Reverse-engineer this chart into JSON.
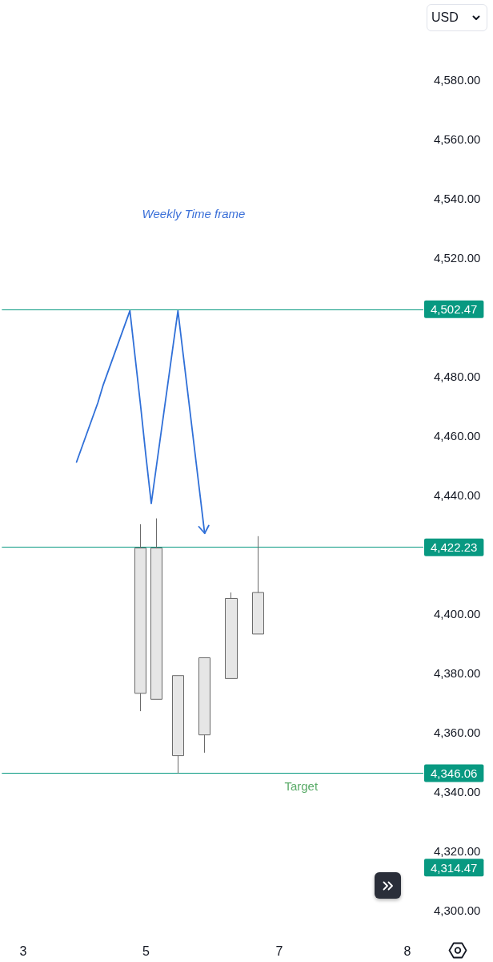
{
  "chart_data": {
    "type": "candlestick",
    "categories": [
      null,
      null,
      null,
      null,
      "3",
      null,
      null,
      null,
      null,
      null,
      null,
      null,
      null,
      null,
      null,
      null,
      null,
      null,
      null,
      null,
      null,
      null,
      null,
      null,
      null,
      null,
      null,
      "5",
      null,
      null,
      null,
      null,
      null,
      null,
      null,
      null,
      null,
      null,
      null,
      null,
      null,
      null,
      null,
      null,
      null,
      null,
      null,
      null,
      null,
      null,
      null,
      null,
      "7",
      null,
      null,
      null,
      null,
      null,
      null,
      null,
      null,
      null,
      null,
      null,
      null,
      null,
      null,
      null,
      null,
      null,
      null,
      null,
      null,
      null,
      null,
      null,
      "8",
      null,
      null,
      null
    ],
    "ohlc": [
      null,
      null,
      null,
      null,
      null,
      null,
      null,
      null,
      null,
      null,
      null,
      null,
      null,
      null,
      null,
      null,
      null,
      null,
      null,
      null,
      null,
      null,
      null,
      null,
      null,
      null,
      [
        4422,
        4430,
        4367,
        4373
      ],
      null,
      null,
      [
        4422,
        4432,
        4371,
        4371
      ],
      null,
      null,
      null,
      [
        4379,
        4379,
        4346,
        4352
      ],
      null,
      null,
      null,
      null,
      [
        4385,
        4385,
        4353,
        4359
      ],
      null,
      null,
      null,
      null,
      [
        4405,
        4407,
        4378,
        4378
      ],
      null,
      null,
      null,
      null,
      [
        4407,
        4426,
        4393,
        4393
      ],
      null,
      null,
      null,
      null,
      null,
      null,
      null,
      null,
      null,
      null,
      null,
      null,
      null,
      null,
      null,
      null,
      null,
      null,
      null,
      null,
      null,
      null,
      null,
      null,
      null,
      null,
      null,
      null,
      null,
      null,
      null
    ],
    "color": "#e6e6e6",
    "series": [
      {
        "type": "line",
        "color": "#3070d8",
        "values": [
          null,
          null,
          null,
          null,
          null,
          null,
          null,
          null,
          null,
          null,
          null,
          null,
          null,
          null,
          4451,
          4456,
          4461,
          4466,
          4471,
          4477,
          4482,
          4487,
          4492,
          4497,
          4502,
          4486,
          4470,
          4453,
          4437,
          4450,
          4463,
          4476,
          4489,
          4502,
          4487,
          4472,
          4457,
          4442,
          4427,
          null,
          null,
          null,
          null,
          null,
          null,
          null,
          null,
          null,
          null,
          null,
          null,
          null,
          null,
          null,
          null,
          null,
          null,
          null,
          null,
          null,
          null,
          null,
          null,
          null,
          null,
          null,
          null,
          null,
          null,
          null,
          null,
          null,
          null,
          null,
          null,
          null,
          null,
          null,
          null,
          null
        ]
      }
    ],
    "marker": "none",
    "ylabel": "USD",
    "ylim": [
      4300,
      4580
    ],
    "yticks": [
      {
        "value": 4300,
        "label": "4,300.00"
      },
      {
        "value": 4320,
        "label": "4,320.00"
      },
      {
        "value": 4340,
        "label": "4,340.00"
      },
      {
        "value": 4360,
        "label": "4,360.00"
      },
      {
        "value": 4380,
        "label": "4,380.00"
      },
      {
        "value": 4400,
        "label": "4,400.00"
      },
      {
        "value": 4440,
        "label": "4,440.00"
      },
      {
        "value": 4460,
        "label": "4,460.00"
      },
      {
        "value": 4480,
        "label": "4,480.00"
      },
      {
        "value": 4520,
        "label": "4,520.00"
      },
      {
        "value": 4540,
        "label": "4,540.00"
      },
      {
        "value": 4560,
        "label": "4,560.00"
      },
      {
        "value": 4580,
        "label": "4,580.00"
      }
    ],
    "ref_lines": [
      {
        "axis": "y",
        "value": 4502.47,
        "label": "4,502.47",
        "color": "#089981"
      },
      {
        "axis": "y",
        "value": 4422.23,
        "label": "4,422.23",
        "color": "#089981"
      },
      {
        "axis": "y",
        "value": 4346.06,
        "label": "4,346.06",
        "color": "#089981"
      }
    ],
    "annotations": [
      "Weekly Time frame",
      {
        "text": "Target",
        "y": 4346.06
      },
      "4,314.47"
    ]
  }
}
